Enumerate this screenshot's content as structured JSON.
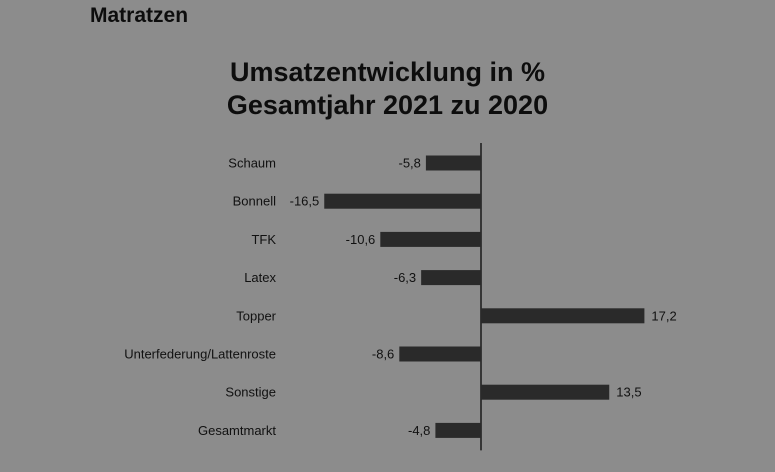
{
  "header": {
    "section": "Matratzen"
  },
  "chart_data": {
    "type": "bar",
    "orientation": "horizontal",
    "title_lines": [
      "Umsatzentwicklung in %",
      "Gesamtjahr 2021 zu 2020"
    ],
    "categories": [
      "Schaum",
      "Bonnell",
      "TFK",
      "Latex",
      "Topper",
      "Unterfederung/Lattenroste",
      "Sonstige",
      "Gesamtmarkt"
    ],
    "values": [
      -5.8,
      -16.5,
      -10.6,
      -6.3,
      17.2,
      -8.6,
      13.5,
      -4.8
    ],
    "value_labels": [
      "-5,8",
      "-16,5",
      "-10,6",
      "-6,3",
      "17,2",
      "-8,6",
      "13,5",
      "-4,8"
    ],
    "xlim": [
      -16.5,
      17.2
    ],
    "bar_color": "#2a2a2a",
    "axis_color": "#1a1a1a",
    "grid": false,
    "legend": "none"
  }
}
